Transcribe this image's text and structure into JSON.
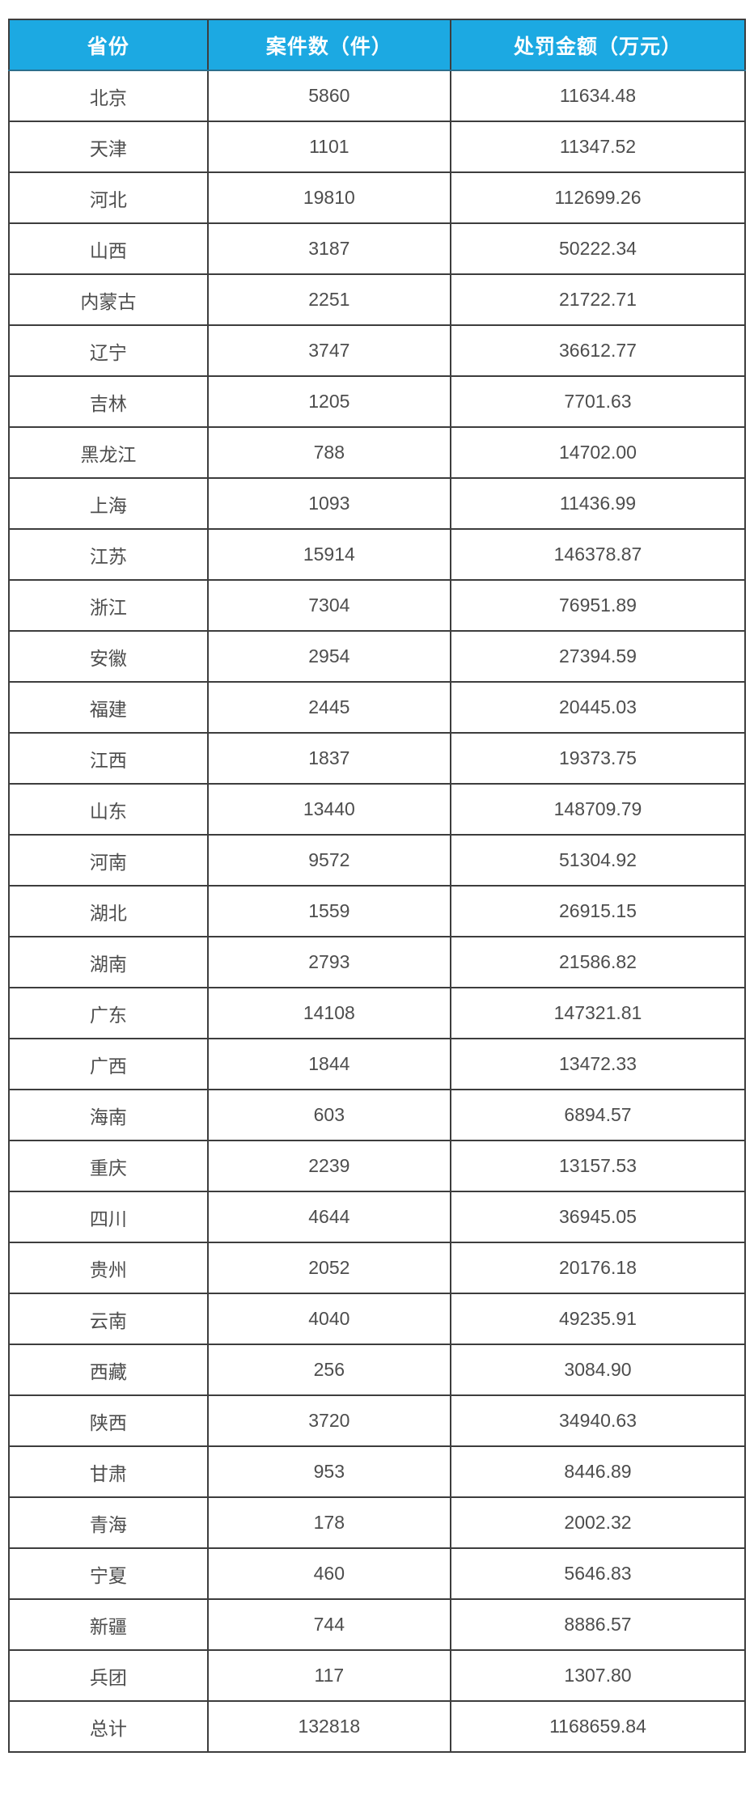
{
  "colors": {
    "header_bg": "#1ca9e2",
    "header_text": "#ffffff",
    "grid_border": "#3d3d3d",
    "cell_text": "#4d4d4d",
    "page_bg": "#ffffff"
  },
  "chart_data": {
    "type": "table",
    "columns": [
      "省份",
      "案件数（件）",
      "处罚金额（万元）"
    ],
    "rows": [
      [
        "北京",
        "5860",
        "11634.48"
      ],
      [
        "天津",
        "1101",
        "11347.52"
      ],
      [
        "河北",
        "19810",
        "112699.26"
      ],
      [
        "山西",
        "3187",
        "50222.34"
      ],
      [
        "内蒙古",
        "2251",
        "21722.71"
      ],
      [
        "辽宁",
        "3747",
        "36612.77"
      ],
      [
        "吉林",
        "1205",
        "7701.63"
      ],
      [
        "黑龙江",
        "788",
        "14702.00"
      ],
      [
        "上海",
        "1093",
        "11436.99"
      ],
      [
        "江苏",
        "15914",
        "146378.87"
      ],
      [
        "浙江",
        "7304",
        "76951.89"
      ],
      [
        "安徽",
        "2954",
        "27394.59"
      ],
      [
        "福建",
        "2445",
        "20445.03"
      ],
      [
        "江西",
        "1837",
        "19373.75"
      ],
      [
        "山东",
        "13440",
        "148709.79"
      ],
      [
        "河南",
        "9572",
        "51304.92"
      ],
      [
        "湖北",
        "1559",
        "26915.15"
      ],
      [
        "湖南",
        "2793",
        "21586.82"
      ],
      [
        "广东",
        "14108",
        "147321.81"
      ],
      [
        "广西",
        "1844",
        "13472.33"
      ],
      [
        "海南",
        "603",
        "6894.57"
      ],
      [
        "重庆",
        "2239",
        "13157.53"
      ],
      [
        "四川",
        "4644",
        "36945.05"
      ],
      [
        "贵州",
        "2052",
        "20176.18"
      ],
      [
        "云南",
        "4040",
        "49235.91"
      ],
      [
        "西藏",
        "256",
        "3084.90"
      ],
      [
        "陕西",
        "3720",
        "34940.63"
      ],
      [
        "甘肃",
        "953",
        "8446.89"
      ],
      [
        "青海",
        "178",
        "2002.32"
      ],
      [
        "宁夏",
        "460",
        "5646.83"
      ],
      [
        "新疆",
        "744",
        "8886.57"
      ],
      [
        "兵团",
        "117",
        "1307.80"
      ]
    ],
    "total_row": [
      "总计",
      "132818",
      "1168659.84"
    ]
  }
}
